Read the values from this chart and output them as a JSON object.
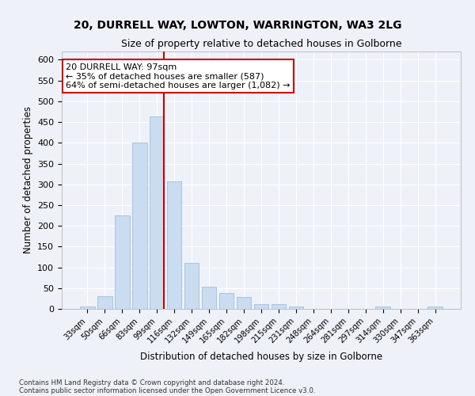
{
  "title_line1": "20, DURRELL WAY, LOWTON, WARRINGTON, WA3 2LG",
  "title_line2": "Size of property relative to detached houses in Golborne",
  "xlabel": "Distribution of detached houses by size in Golborne",
  "ylabel": "Number of detached properties",
  "bins": [
    "33sqm",
    "50sqm",
    "66sqm",
    "83sqm",
    "99sqm",
    "116sqm",
    "132sqm",
    "149sqm",
    "165sqm",
    "182sqm",
    "198sqm",
    "215sqm",
    "231sqm",
    "248sqm",
    "264sqm",
    "281sqm",
    "297sqm",
    "314sqm",
    "330sqm",
    "347sqm",
    "363sqm"
  ],
  "values": [
    5,
    30,
    226,
    401,
    463,
    307,
    110,
    54,
    39,
    28,
    12,
    11,
    6,
    0,
    0,
    0,
    0,
    5,
    0,
    0,
    5
  ],
  "bar_color": "#c9dcf0",
  "bar_edge_color": "#a8c4e0",
  "annotation_line1": "20 DURRELL WAY: 97sqm",
  "annotation_line2": "← 35% of detached houses are smaller (587)",
  "annotation_line3": "64% of semi-detached houses are larger (1,082) →",
  "vline_color": "#cc0000",
  "vline_x": 4.42,
  "ylim": [
    0,
    620
  ],
  "yticks": [
    0,
    50,
    100,
    150,
    200,
    250,
    300,
    350,
    400,
    450,
    500,
    550,
    600
  ],
  "footnote1": "Contains HM Land Registry data © Crown copyright and database right 2024.",
  "footnote2": "Contains public sector information licensed under the Open Government Licence v3.0.",
  "background_color": "#eef2f8",
  "grid_color": "#ffffff"
}
